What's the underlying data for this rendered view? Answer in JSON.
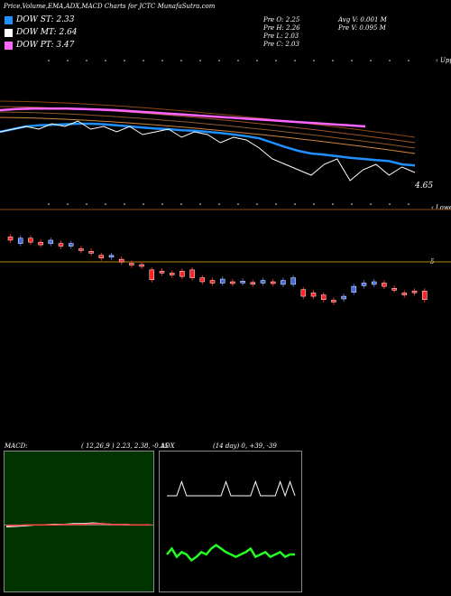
{
  "title": "Price,Volume,EMA,ADX,MACD Charts for JCTC MunafaSutra.com",
  "legend": [
    {
      "label": "DOW ST: 2.33",
      "color": "#1e90ff"
    },
    {
      "label": "DOW MT: 2.64",
      "color": "#ffffff"
    },
    {
      "label": "DOW PT: 3.47",
      "color": "#ff66ff"
    }
  ],
  "stats": {
    "prev_open": "Pre   O: 2.25",
    "prev_high": "Pre   H: 2.26",
    "prev_low": "Pre   L: 2.03",
    "prev_close": "Pre   C: 2.03",
    "avg_volume": "Avg V: 0.001 M",
    "prev_volume": "Pre   V: 0.095 M"
  },
  "axis": {
    "upper_tag": "‹ Upper",
    "lower_tag": "‹ Lower",
    "price_label": "4.65",
    "level_label": "5"
  },
  "macd": {
    "label": "MACD:",
    "params": "( 12,26,9 ) 2.23,  2.38, -0.15"
  },
  "adx": {
    "label": "ADX",
    "params": "(14 day) 0, +39, -39"
  },
  "chart_data": {
    "type": "line",
    "series": [
      {
        "name": "DOW ST",
        "color": "#1e90ff",
        "values": [
          4.9,
          4.95,
          5.0,
          5.02,
          5.03,
          5.04,
          5.05,
          5.05,
          5.04,
          5.02,
          5.0,
          4.98,
          4.96,
          4.95,
          4.93,
          4.92,
          4.9,
          4.88,
          4.85,
          4.82,
          4.78,
          4.7,
          4.62,
          4.55,
          4.5,
          4.48,
          4.45,
          4.42,
          4.4,
          4.38,
          4.36,
          4.3,
          4.28
        ]
      },
      {
        "name": "DOW MT",
        "color": "#ffffff",
        "values": [
          4.9,
          4.95,
          5.0,
          4.95,
          5.05,
          5.0,
          5.1,
          4.95,
          5.0,
          4.9,
          5.0,
          4.85,
          4.9,
          4.95,
          4.8,
          4.9,
          4.85,
          4.7,
          4.8,
          4.75,
          4.6,
          4.4,
          4.3,
          4.2,
          4.1,
          4.3,
          4.4,
          4.0,
          4.2,
          4.3,
          4.1,
          4.25,
          4.15
        ]
      },
      {
        "name": "DOW PT",
        "color": "#ff66ff",
        "values": [
          5.3,
          5.32,
          5.33,
          5.33,
          5.33,
          5.32,
          5.31,
          5.3,
          5.28,
          5.26,
          5.24,
          5.22,
          5.2,
          5.18,
          5.16,
          5.14,
          5.12,
          5.1,
          5.08,
          5.06,
          5.04,
          5.02,
          5.0
        ]
      }
    ],
    "candles": [
      {
        "o": 5.4,
        "c": 5.35,
        "dir": "down"
      },
      {
        "o": 5.3,
        "c": 5.38,
        "dir": "up"
      },
      {
        "o": 5.38,
        "c": 5.32,
        "dir": "down"
      },
      {
        "o": 5.32,
        "c": 5.28,
        "dir": "down"
      },
      {
        "o": 5.3,
        "c": 5.35,
        "dir": "up"
      },
      {
        "o": 5.3,
        "c": 5.26,
        "dir": "down"
      },
      {
        "o": 5.26,
        "c": 5.3,
        "dir": "up"
      },
      {
        "o": 5.22,
        "c": 5.2,
        "dir": "down"
      },
      {
        "o": 5.18,
        "c": 5.16,
        "dir": "down"
      },
      {
        "o": 5.12,
        "c": 5.08,
        "dir": "down"
      },
      {
        "o": 5.1,
        "c": 5.12,
        "dir": "up"
      },
      {
        "o": 5.06,
        "c": 5.02,
        "dir": "down"
      },
      {
        "o": 5.0,
        "c": 4.98,
        "dir": "down"
      },
      {
        "o": 4.98,
        "c": 4.96,
        "dir": "down"
      },
      {
        "o": 4.9,
        "c": 4.75,
        "dir": "down"
      },
      {
        "o": 4.88,
        "c": 4.86,
        "dir": "down"
      },
      {
        "o": 4.85,
        "c": 4.84,
        "dir": "down"
      },
      {
        "o": 4.88,
        "c": 4.8,
        "dir": "down"
      },
      {
        "o": 4.9,
        "c": 4.78,
        "dir": "down"
      },
      {
        "o": 4.78,
        "c": 4.72,
        "dir": "down"
      },
      {
        "o": 4.74,
        "c": 4.7,
        "dir": "down"
      },
      {
        "o": 4.7,
        "c": 4.76,
        "dir": "up"
      },
      {
        "o": 4.72,
        "c": 4.71,
        "dir": "down"
      },
      {
        "o": 4.72,
        "c": 4.73,
        "dir": "up"
      },
      {
        "o": 4.71,
        "c": 4.71,
        "dir": "down"
      },
      {
        "o": 4.7,
        "c": 4.74,
        "dir": "up"
      },
      {
        "o": 4.72,
        "c": 4.7,
        "dir": "down"
      },
      {
        "o": 4.68,
        "c": 4.74,
        "dir": "up"
      },
      {
        "o": 4.68,
        "c": 4.78,
        "dir": "up"
      },
      {
        "o": 4.6,
        "c": 4.5,
        "dir": "down"
      },
      {
        "o": 4.55,
        "c": 4.5,
        "dir": "down"
      },
      {
        "o": 4.52,
        "c": 4.45,
        "dir": "down"
      },
      {
        "o": 4.44,
        "c": 4.42,
        "dir": "down"
      },
      {
        "o": 4.46,
        "c": 4.5,
        "dir": "up"
      },
      {
        "o": 4.56,
        "c": 4.65,
        "dir": "up"
      },
      {
        "o": 4.66,
        "c": 4.7,
        "dir": "up"
      },
      {
        "o": 4.68,
        "c": 4.72,
        "dir": "up"
      },
      {
        "o": 4.7,
        "c": 4.65,
        "dir": "down"
      },
      {
        "o": 4.62,
        "c": 4.6,
        "dir": "down"
      },
      {
        "o": 4.55,
        "c": 4.52,
        "dir": "down"
      },
      {
        "o": 4.58,
        "c": 4.56,
        "dir": "down"
      },
      {
        "o": 4.58,
        "c": 4.45,
        "dir": "down"
      }
    ],
    "macd_line": [
      2.25,
      2.26,
      2.27,
      2.28,
      2.28,
      2.29,
      2.29,
      2.3,
      2.3,
      2.31,
      2.3,
      2.29,
      2.29,
      2.28,
      2.28,
      2.28
    ],
    "macd_signal": [
      2.27,
      2.27,
      2.28,
      2.28,
      2.28,
      2.28,
      2.29,
      2.29,
      2.29,
      2.3,
      2.3,
      2.29,
      2.29,
      2.28,
      2.28,
      2.28
    ],
    "adx_line": [
      70,
      70,
      70,
      82,
      70,
      70,
      70,
      70,
      70,
      70,
      70,
      70,
      82,
      70,
      70,
      70,
      70,
      70,
      82,
      70,
      70,
      70,
      70,
      82,
      70,
      82,
      70
    ],
    "adx_green": [
      20,
      25,
      18,
      22,
      20,
      15,
      18,
      22,
      20,
      25,
      28,
      25,
      22,
      20,
      18,
      20,
      22,
      25,
      18,
      20,
      22,
      18,
      20,
      22,
      18,
      20,
      20
    ]
  }
}
